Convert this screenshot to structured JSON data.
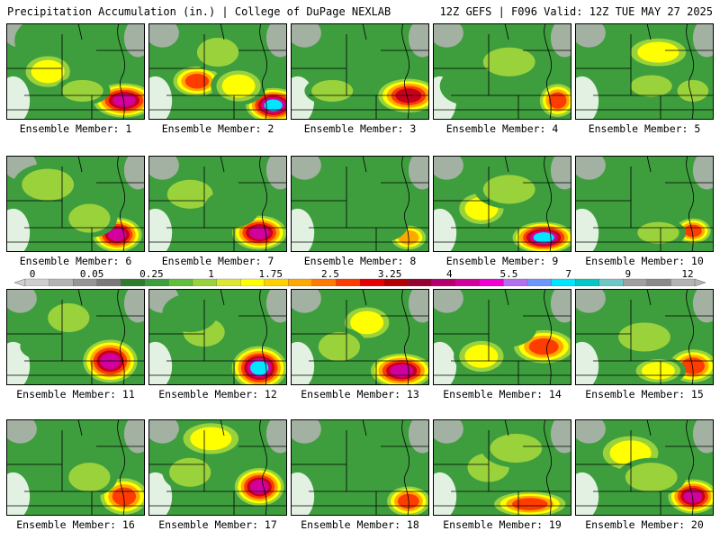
{
  "header": {
    "left": "Precipitation Accumulation (in.) | College of DuPage NEXLAB",
    "right": "12Z GEFS | F096 Valid: 12Z TUE MAY 27 2025"
  },
  "colorbar": {
    "labels": [
      "0",
      "0.05",
      "0.25",
      "1",
      "1.75",
      "2.5",
      "3.25",
      "4",
      "5.5",
      "7",
      "9",
      "12"
    ],
    "colors": [
      "#cfcfcf",
      "#b4b4b4",
      "#969696",
      "#7a7a7a",
      "#2e7d2e",
      "#3e9e3e",
      "#62bf3e",
      "#9ad23c",
      "#dce830",
      "#ffff00",
      "#ffd000",
      "#ffa800",
      "#ff7a00",
      "#ff3c00",
      "#e60000",
      "#b40000",
      "#960032",
      "#b4006e",
      "#d2009c",
      "#f000d2",
      "#b46ef0",
      "#6e96ff",
      "#00e6ff",
      "#00c8c8",
      "#6ec8c8",
      "#a0a0a0",
      "#8a8a8a",
      "#b4b4b4"
    ]
  },
  "members": [
    {
      "label": "Ensemble Member: 1",
      "blobs": [
        [
          0.28,
          0.18,
          0.22,
          0.25,
          2
        ],
        [
          0.85,
          0.8,
          0.25,
          0.2,
          8
        ],
        [
          0.3,
          0.5,
          0.2,
          0.2,
          4
        ],
        [
          0.55,
          0.7,
          0.2,
          0.15,
          3
        ]
      ]
    },
    {
      "label": "Ensemble Member: 2",
      "blobs": [
        [
          0.35,
          0.6,
          0.2,
          0.18,
          6
        ],
        [
          0.9,
          0.85,
          0.22,
          0.2,
          9
        ],
        [
          0.5,
          0.3,
          0.2,
          0.2,
          3
        ],
        [
          0.65,
          0.65,
          0.2,
          0.2,
          4
        ]
      ]
    },
    {
      "label": "Ensemble Member: 3",
      "blobs": [
        [
          0.85,
          0.75,
          0.25,
          0.2,
          7
        ],
        [
          0.4,
          0.4,
          0.2,
          0.18,
          2
        ],
        [
          0.3,
          0.7,
          0.2,
          0.15,
          3
        ]
      ]
    },
    {
      "label": "Ensemble Member: 4",
      "blobs": [
        [
          0.9,
          0.8,
          0.15,
          0.2,
          6
        ],
        [
          0.55,
          0.4,
          0.25,
          0.2,
          3
        ],
        [
          0.25,
          0.65,
          0.2,
          0.2,
          2
        ]
      ]
    },
    {
      "label": "Ensemble Member: 5",
      "blobs": [
        [
          0.6,
          0.3,
          0.25,
          0.18,
          4
        ],
        [
          0.55,
          0.65,
          0.2,
          0.15,
          3
        ],
        [
          0.85,
          0.7,
          0.15,
          0.15,
          3
        ]
      ]
    },
    {
      "label": "Ensemble Member: 6",
      "blobs": [
        [
          0.8,
          0.82,
          0.2,
          0.2,
          8
        ],
        [
          0.3,
          0.3,
          0.25,
          0.22,
          3
        ],
        [
          0.6,
          0.65,
          0.2,
          0.2,
          3
        ]
      ]
    },
    {
      "label": "Ensemble Member: 7",
      "blobs": [
        [
          0.8,
          0.8,
          0.22,
          0.2,
          8
        ],
        [
          0.3,
          0.4,
          0.22,
          0.2,
          3
        ],
        [
          0.6,
          0.55,
          0.2,
          0.2,
          2
        ]
      ]
    },
    {
      "label": "Ensemble Member: 8",
      "blobs": [
        [
          0.85,
          0.85,
          0.15,
          0.15,
          5
        ],
        [
          0.4,
          0.55,
          0.2,
          0.2,
          2
        ],
        [
          0.65,
          0.7,
          0.2,
          0.2,
          2
        ]
      ]
    },
    {
      "label": "Ensemble Member: 9",
      "blobs": [
        [
          0.8,
          0.85,
          0.25,
          0.18,
          9
        ],
        [
          0.35,
          0.55,
          0.2,
          0.2,
          4
        ],
        [
          0.55,
          0.35,
          0.25,
          0.2,
          3
        ]
      ]
    },
    {
      "label": "Ensemble Member: 10",
      "blobs": [
        [
          0.85,
          0.78,
          0.15,
          0.15,
          6
        ],
        [
          0.55,
          0.5,
          0.25,
          0.2,
          2
        ],
        [
          0.6,
          0.8,
          0.2,
          0.15,
          3
        ]
      ]
    },
    {
      "label": "Ensemble Member: 11",
      "blobs": [
        [
          0.75,
          0.75,
          0.22,
          0.25,
          8
        ],
        [
          0.45,
          0.3,
          0.2,
          0.2,
          3
        ],
        [
          0.3,
          0.6,
          0.2,
          0.15,
          2
        ]
      ]
    },
    {
      "label": "Ensemble Member: 12",
      "blobs": [
        [
          0.8,
          0.82,
          0.22,
          0.25,
          9
        ],
        [
          0.4,
          0.45,
          0.2,
          0.2,
          3
        ],
        [
          0.3,
          0.25,
          0.2,
          0.2,
          2
        ]
      ]
    },
    {
      "label": "Ensemble Member: 13",
      "blobs": [
        [
          0.8,
          0.85,
          0.25,
          0.2,
          8
        ],
        [
          0.55,
          0.35,
          0.2,
          0.2,
          4
        ],
        [
          0.35,
          0.6,
          0.2,
          0.2,
          3
        ]
      ]
    },
    {
      "label": "Ensemble Member: 14",
      "blobs": [
        [
          0.8,
          0.6,
          0.25,
          0.2,
          6
        ],
        [
          0.35,
          0.7,
          0.2,
          0.2,
          4
        ],
        [
          0.55,
          0.4,
          0.2,
          0.2,
          2
        ]
      ]
    },
    {
      "label": "Ensemble Member: 15",
      "blobs": [
        [
          0.85,
          0.8,
          0.2,
          0.2,
          6
        ],
        [
          0.5,
          0.5,
          0.25,
          0.2,
          3
        ],
        [
          0.6,
          0.85,
          0.2,
          0.15,
          4
        ]
      ]
    },
    {
      "label": "Ensemble Member: 16",
      "blobs": [
        [
          0.85,
          0.8,
          0.2,
          0.22,
          6
        ],
        [
          0.4,
          0.4,
          0.2,
          0.2,
          2
        ],
        [
          0.6,
          0.6,
          0.2,
          0.2,
          3
        ]
      ]
    },
    {
      "label": "Ensemble Member: 17",
      "blobs": [
        [
          0.8,
          0.7,
          0.2,
          0.22,
          8
        ],
        [
          0.45,
          0.2,
          0.25,
          0.2,
          4
        ],
        [
          0.3,
          0.55,
          0.2,
          0.2,
          3
        ]
      ]
    },
    {
      "label": "Ensemble Member: 18",
      "blobs": [
        [
          0.85,
          0.85,
          0.18,
          0.18,
          6
        ],
        [
          0.45,
          0.55,
          0.2,
          0.2,
          2
        ],
        [
          0.6,
          0.35,
          0.2,
          0.18,
          2
        ]
      ]
    },
    {
      "label": "Ensemble Member: 19",
      "blobs": [
        [
          0.7,
          0.88,
          0.3,
          0.15,
          6
        ],
        [
          0.4,
          0.5,
          0.2,
          0.2,
          3
        ],
        [
          0.6,
          0.3,
          0.25,
          0.2,
          3
        ]
      ]
    },
    {
      "label": "Ensemble Member: 20",
      "blobs": [
        [
          0.85,
          0.8,
          0.2,
          0.2,
          8
        ],
        [
          0.4,
          0.35,
          0.25,
          0.22,
          4
        ],
        [
          0.55,
          0.6,
          0.25,
          0.2,
          3
        ]
      ]
    }
  ]
}
